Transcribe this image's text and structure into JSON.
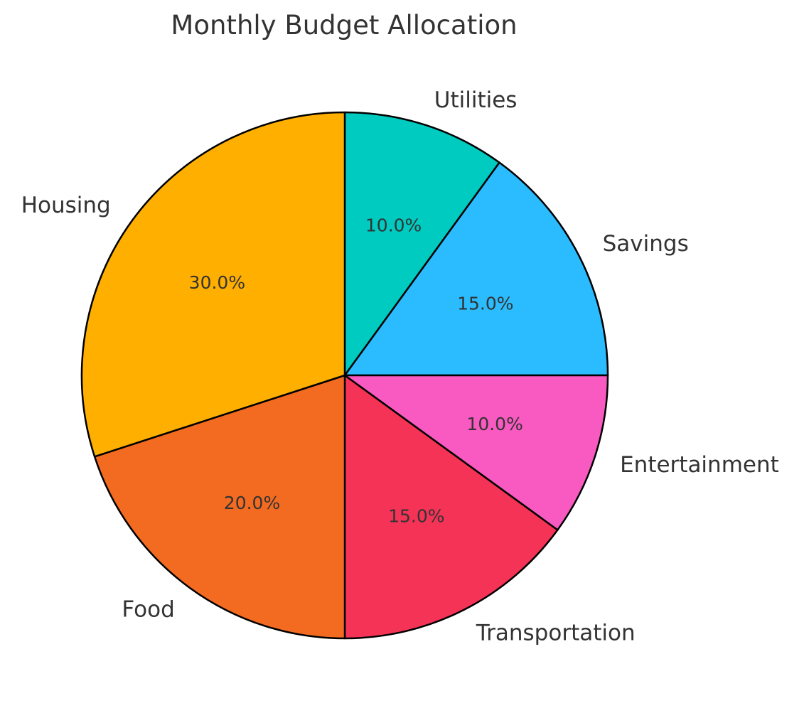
{
  "chart_data": {
    "type": "pie",
    "title": "Monthly Budget Allocation",
    "start_angle_deg": 90,
    "direction": "clockwise",
    "slices": [
      {
        "label": "Utilities",
        "value": 10,
        "pct_label": "10.0%",
        "color": "#00CBC0"
      },
      {
        "label": "Savings",
        "value": 15,
        "pct_label": "15.0%",
        "color": "#2BBCFF"
      },
      {
        "label": "Entertainment",
        "value": 10,
        "pct_label": "10.0%",
        "color": "#F85AC1"
      },
      {
        "label": "Transportation",
        "value": 15,
        "pct_label": "15.0%",
        "color": "#F53357"
      },
      {
        "label": "Food",
        "value": 20,
        "pct_label": "20.0%",
        "color": "#F36B21"
      },
      {
        "label": "Housing",
        "value": 30,
        "pct_label": "30.0%",
        "color": "#FFAF00"
      }
    ]
  }
}
